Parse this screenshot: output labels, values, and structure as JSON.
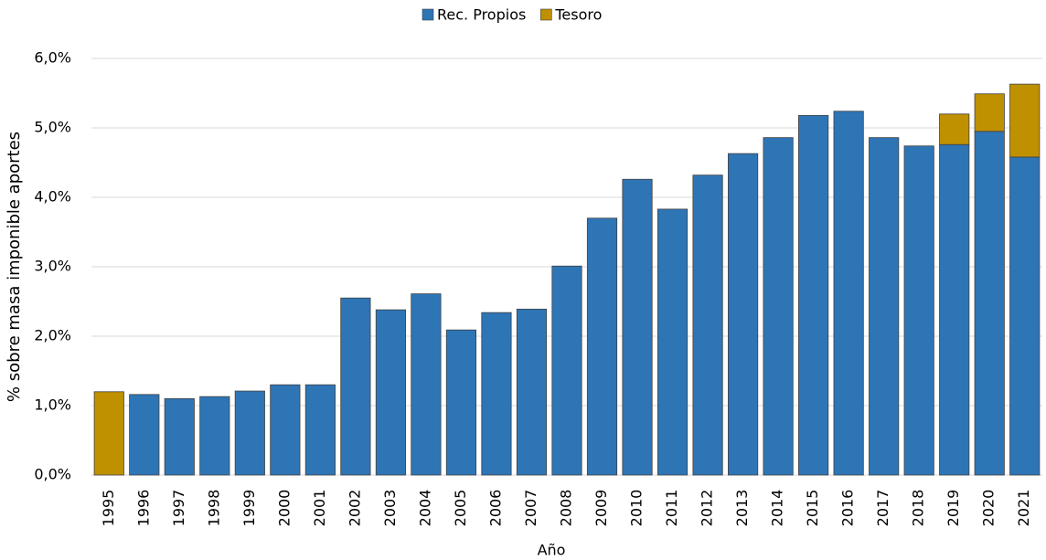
{
  "chart_data": {
    "type": "stacked_bar",
    "x_label": "Año",
    "y_label": "% sobre masa imponible aportes",
    "categories": [
      "1995",
      "1996",
      "1997",
      "1998",
      "1999",
      "2000",
      "2001",
      "2002",
      "2003",
      "2004",
      "2005",
      "2006",
      "2007",
      "2008",
      "2009",
      "2010",
      "2011",
      "2012",
      "2013",
      "2014",
      "2015",
      "2016",
      "2017",
      "2018",
      "2019",
      "2020",
      "2021"
    ],
    "series": [
      {
        "name": "Rec. Propios",
        "color": "#2e75b6",
        "values": [
          0,
          1.16,
          1.1,
          1.13,
          1.21,
          1.3,
          1.3,
          2.55,
          2.38,
          2.61,
          2.09,
          2.34,
          2.39,
          3.01,
          3.7,
          4.26,
          3.83,
          4.32,
          4.63,
          4.86,
          5.18,
          5.24,
          4.86,
          4.74,
          4.76,
          4.95,
          4.58
        ]
      },
      {
        "name": "Tesoro",
        "color": "#bf9000",
        "values": [
          1.2,
          0,
          0,
          0,
          0,
          0,
          0,
          0,
          0,
          0,
          0,
          0,
          0,
          0,
          0,
          0,
          0,
          0,
          0,
          0,
          0,
          0,
          0,
          0,
          0.44,
          0.54,
          1.05
        ]
      }
    ],
    "ylim": [
      0,
      6
    ],
    "yticks": [
      {
        "value": 0,
        "label": "0,0%"
      },
      {
        "value": 1,
        "label": "1,0%"
      },
      {
        "value": 2,
        "label": "2,0%"
      },
      {
        "value": 3,
        "label": "3,0%"
      },
      {
        "value": 4,
        "label": "4,0%"
      },
      {
        "value": 5,
        "label": "5,0%"
      },
      {
        "value": 6,
        "label": "6,0%"
      }
    ],
    "grid": true,
    "legend": "top"
  }
}
